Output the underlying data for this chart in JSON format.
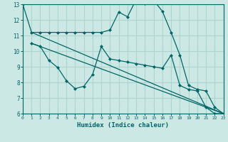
{
  "bg_color": "#cce8e5",
  "grid_color": "#aed4d0",
  "line_color": "#006666",
  "xlabel": "Humidex (Indice chaleur)",
  "ylim": [
    6,
    13
  ],
  "xlim": [
    0,
    23
  ],
  "yticks": [
    6,
    7,
    8,
    9,
    10,
    11,
    12,
    13
  ],
  "xticks": [
    0,
    1,
    2,
    3,
    4,
    5,
    6,
    7,
    8,
    9,
    10,
    11,
    12,
    13,
    14,
    15,
    16,
    17,
    18,
    19,
    20,
    21,
    22,
    23
  ],
  "line1_x": [
    0,
    1,
    2,
    3,
    4,
    5,
    6,
    7,
    8,
    9,
    10,
    11,
    12,
    13,
    14,
    15,
    16,
    17,
    18,
    19,
    20,
    21,
    22,
    23
  ],
  "line1_y": [
    13.0,
    11.2,
    11.2,
    11.2,
    11.2,
    11.2,
    11.2,
    11.2,
    11.2,
    11.2,
    11.35,
    12.5,
    12.2,
    13.3,
    13.05,
    13.25,
    12.55,
    11.2,
    9.75,
    7.8,
    7.55,
    7.45,
    6.4,
    6.0
  ],
  "line2_x": [
    1,
    2,
    3,
    4,
    5,
    6,
    7,
    8,
    9,
    10,
    11,
    12,
    13,
    14,
    15,
    16,
    17,
    18,
    19,
    20,
    21,
    22,
    23
  ],
  "line2_y": [
    10.5,
    10.3,
    9.4,
    8.95,
    8.1,
    7.6,
    7.75,
    8.5,
    10.3,
    9.5,
    9.4,
    9.3,
    9.2,
    9.1,
    9.0,
    8.9,
    9.75,
    7.8,
    7.55,
    7.45,
    6.4,
    6.0,
    6.0
  ],
  "line3_x": [
    1,
    23
  ],
  "line3_y": [
    11.2,
    6.0
  ],
  "line4_x": [
    1,
    23
  ],
  "line4_y": [
    10.5,
    6.0
  ]
}
